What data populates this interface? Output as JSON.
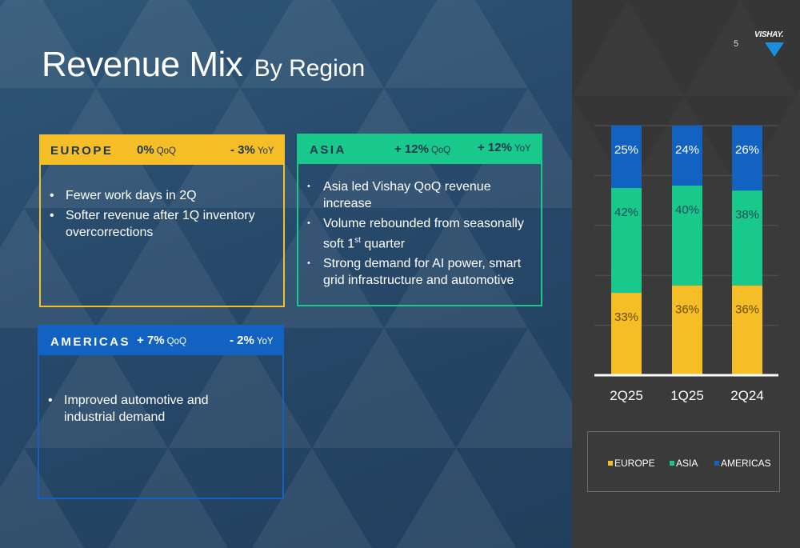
{
  "slide": {
    "title_main": "Revenue Mix",
    "title_sub": "By Region",
    "page_number": "5",
    "logo_text": "VISHAY."
  },
  "colors": {
    "europe": "#f5bd26",
    "asia": "#19c98c",
    "americas": "#1262c2",
    "background_left": "#2a4a67",
    "background_right": "#3a3a3a"
  },
  "cards": {
    "europe": {
      "name": "EUROPE",
      "qoq_value": "0%",
      "qoq_unit": "QoQ",
      "yoy_value": "- 3%",
      "yoy_unit": "YoY",
      "bullets": [
        "Fewer work days in 2Q",
        "Softer revenue after 1Q inventory overcorrections"
      ]
    },
    "asia": {
      "name": "ASIA",
      "qoq_value": "+ 12%",
      "qoq_unit": "QoQ",
      "yoy_value": "+ 12%",
      "yoy_unit": "YoY",
      "bullet_1": "Asia led Vishay QoQ revenue increase",
      "bullet_2_main": "Volume rebounded from seasonally soft 1",
      "bullet_2_sup": "st",
      "bullet_2_end": " quarter",
      "bullet_3": "Strong demand for AI power, smart grid infrastructure and automotive"
    },
    "americas": {
      "name": "AMERICAS",
      "qoq_value": "+ 7%",
      "qoq_unit": "QoQ",
      "yoy_value": "- 2%",
      "yoy_unit": "YoY",
      "bullets": [
        "Improved automotive and industrial demand"
      ]
    }
  },
  "bullet_char": "•",
  "chart_data": {
    "type": "bar",
    "stacked": true,
    "percent": true,
    "categories": [
      "2Q25",
      "1Q25",
      "2Q24"
    ],
    "series": [
      {
        "name": "EUROPE",
        "color": "#f5bd26",
        "values": [
          33,
          36,
          36
        ]
      },
      {
        "name": "ASIA",
        "color": "#19c98c",
        "values": [
          42,
          40,
          38
        ]
      },
      {
        "name": "AMERICAS",
        "color": "#1262c2",
        "values": [
          25,
          24,
          26
        ]
      }
    ],
    "ylim": [
      0,
      100
    ],
    "grid": true,
    "legend": "bottom"
  }
}
